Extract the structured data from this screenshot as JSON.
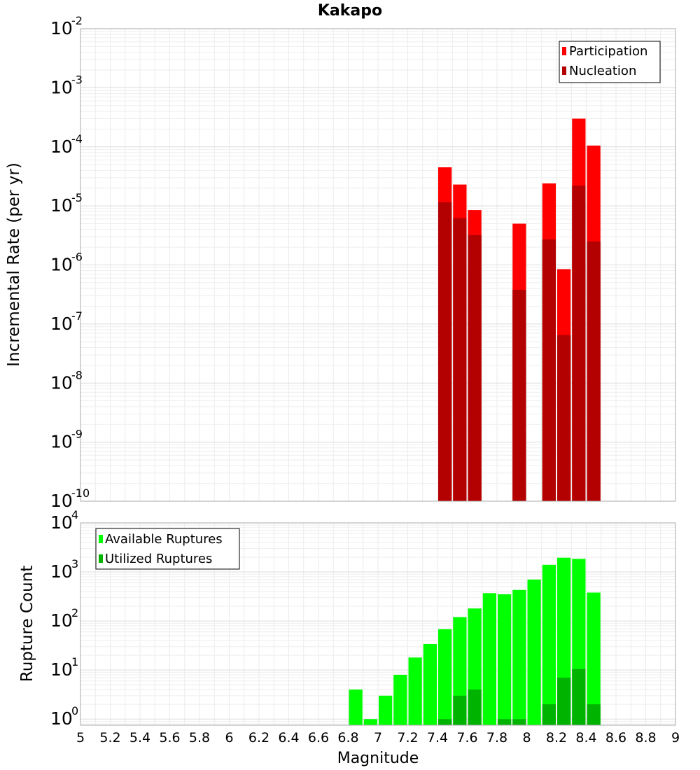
{
  "chart_data": [
    {
      "type": "bar",
      "title": "Kakapo",
      "ylabel": "Incremental Rate (per yr)",
      "xlabel": "",
      "yscale": "log",
      "ylim": [
        1e-10,
        0.01
      ],
      "xlim": [
        5,
        9
      ],
      "grid": true,
      "legend_position": "top-right",
      "y_ticks": [
        {
          "base": "10",
          "exp": "-10",
          "value": 1e-10
        },
        {
          "base": "10",
          "exp": "-9",
          "value": 1e-09
        },
        {
          "base": "10",
          "exp": "-8",
          "value": 1e-08
        },
        {
          "base": "10",
          "exp": "-7",
          "value": 1e-07
        },
        {
          "base": "10",
          "exp": "-6",
          "value": 1e-06
        },
        {
          "base": "10",
          "exp": "-5",
          "value": 1e-05
        },
        {
          "base": "10",
          "exp": "-4",
          "value": 0.0001
        },
        {
          "base": "10",
          "exp": "-3",
          "value": 0.001
        },
        {
          "base": "10",
          "exp": "-2",
          "value": 0.01
        }
      ],
      "x": [
        7.45,
        7.55,
        7.65,
        7.95,
        8.15,
        8.25,
        8.35,
        8.45
      ],
      "bar_width": 0.1,
      "series": [
        {
          "name": "Participation",
          "color": "#ff0000",
          "values": [
            4.5e-05,
            2.3e-05,
            8.5e-06,
            5e-06,
            2.4e-05,
            8.5e-07,
            0.0003,
            0.000105
          ]
        },
        {
          "name": "Nucleation",
          "color": "#b30000",
          "values": [
            1.15e-05,
            6.2e-06,
            3.2e-06,
            3.8e-07,
            2.7e-06,
            6.5e-08,
            2.2e-05,
            2.5e-06
          ]
        }
      ]
    },
    {
      "type": "bar",
      "ylabel": "Rupture Count",
      "xlabel": "Magnitude",
      "yscale": "log",
      "ylim": [
        0.75,
        10000
      ],
      "xlim": [
        5,
        9
      ],
      "grid": true,
      "legend_position": "top-left",
      "x_ticks": [
        "5",
        "5.2",
        "5.4",
        "5.6",
        "5.8",
        "6",
        "6.2",
        "6.4",
        "6.6",
        "6.8",
        "7",
        "7.2",
        "7.4",
        "7.6",
        "7.8",
        "8",
        "8.2",
        "8.4",
        "8.6",
        "8.8",
        "9"
      ],
      "y_ticks": [
        {
          "base": "10",
          "exp": "0",
          "value": 1
        },
        {
          "base": "10",
          "exp": "1",
          "value": 10
        },
        {
          "base": "10",
          "exp": "2",
          "value": 100
        },
        {
          "base": "10",
          "exp": "3",
          "value": 1000
        },
        {
          "base": "10",
          "exp": "4",
          "value": 10000
        }
      ],
      "x": [
        6.85,
        6.95,
        7.05,
        7.15,
        7.25,
        7.35,
        7.45,
        7.55,
        7.65,
        7.75,
        7.85,
        7.95,
        8.05,
        8.15,
        8.25,
        8.35,
        8.45
      ],
      "bar_width": 0.1,
      "series": [
        {
          "name": "Available Ruptures",
          "color": "#00ff00",
          "values": [
            4,
            1,
            3,
            8,
            18,
            34,
            68,
            120,
            180,
            370,
            350,
            430,
            700,
            1400,
            1950,
            1850,
            380
          ]
        },
        {
          "name": "Utilized Ruptures",
          "color": "#00b300",
          "values": [
            null,
            null,
            null,
            null,
            null,
            null,
            1,
            3,
            4,
            null,
            1,
            1,
            null,
            2,
            7,
            10.5,
            2
          ]
        }
      ]
    }
  ]
}
